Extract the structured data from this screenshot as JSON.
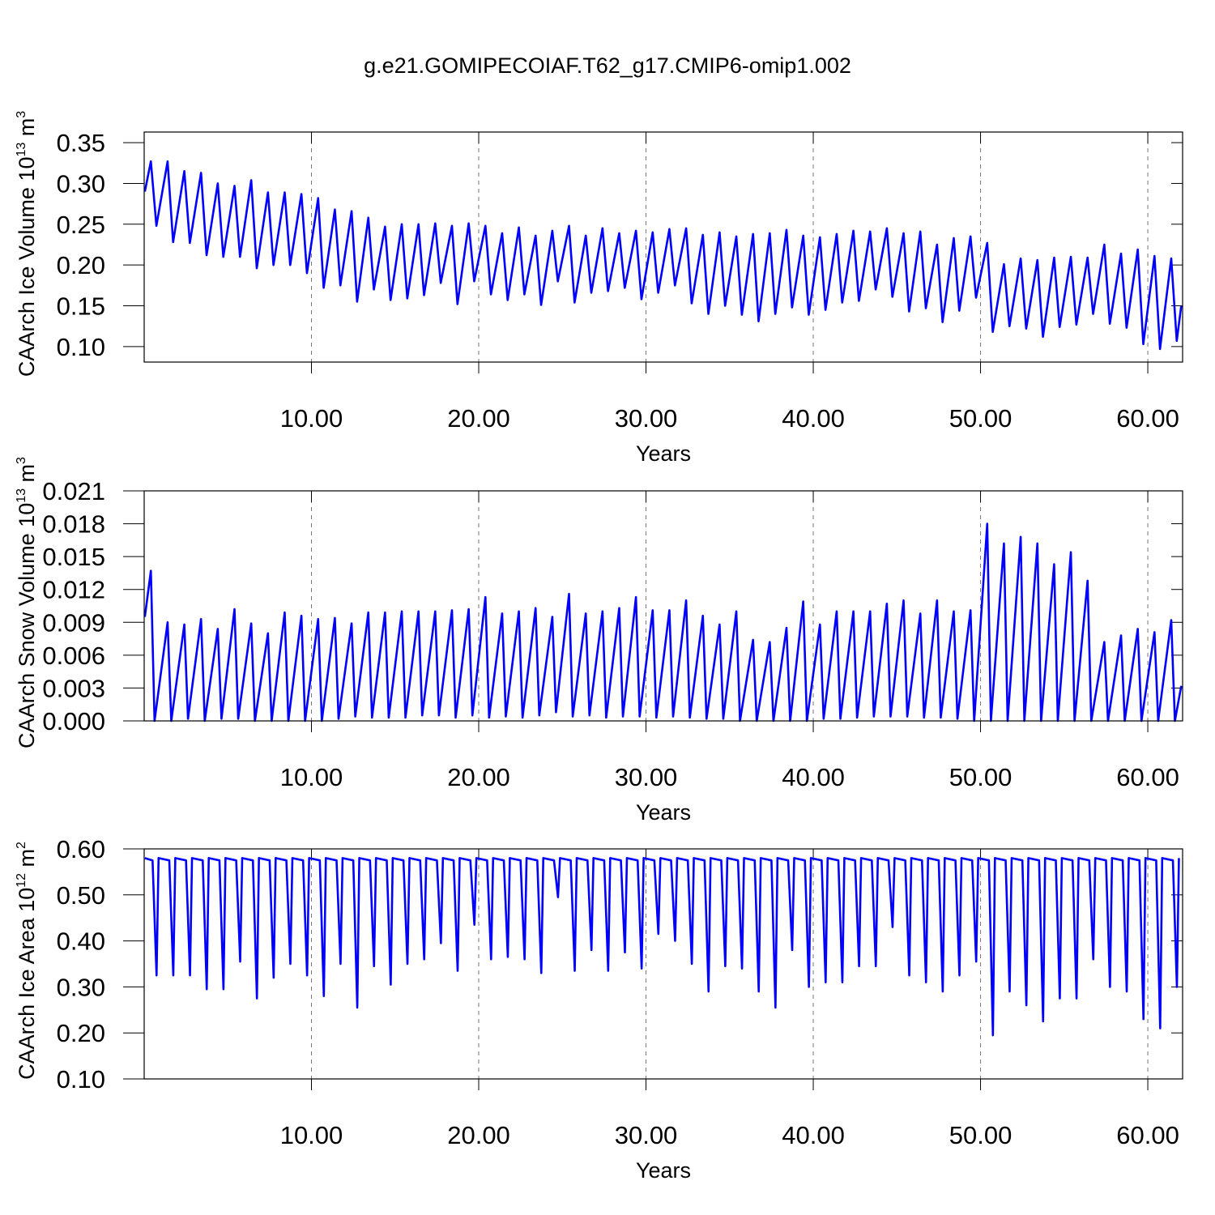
{
  "title": "g.e21.GOMIPECOIAF.T62_g17.CMIP6-omip1.002",
  "chart_data": [
    {
      "type": "line",
      "xlabel": "Years",
      "ylabel": {
        "text": "CAArch Ice Volume 10",
        "exponent": "13",
        "unit": " m",
        "unit_exponent": "3"
      },
      "color": "#0000ff",
      "grid": true,
      "xlim": [
        0,
        62.08
      ],
      "xticks": [
        {
          "value": 10,
          "label": "10.00"
        },
        {
          "value": 20,
          "label": "20.00"
        },
        {
          "value": 30,
          "label": "30.00"
        },
        {
          "value": 40,
          "label": "40.00"
        },
        {
          "value": 50,
          "label": "50.00"
        },
        {
          "value": 60,
          "label": "60.00"
        }
      ],
      "ylim": [
        0.081,
        0.363
      ],
      "yticks": [
        {
          "value": 0.1,
          "label": "0.10"
        },
        0.15,
        {
          "value": 0.2,
          "label": "0.20"
        },
        0.25,
        {
          "value": 0.3,
          "label": "0.30"
        },
        0.35
      ],
      "x": [
        0.04,
        0.4,
        0.73,
        1.4,
        1.73,
        2.4,
        2.73,
        3.4,
        3.73,
        4.4,
        4.73,
        5.4,
        5.73,
        6.4,
        6.73,
        7.4,
        7.73,
        8.4,
        8.73,
        9.4,
        9.73,
        10.4,
        10.73,
        11.4,
        11.73,
        12.4,
        12.73,
        13.4,
        13.73,
        14.4,
        14.73,
        15.4,
        15.73,
        16.4,
        16.73,
        17.4,
        17.73,
        18.4,
        18.73,
        19.4,
        19.73,
        20.4,
        20.73,
        21.4,
        21.73,
        22.4,
        22.73,
        23.4,
        23.73,
        24.4,
        24.73,
        25.4,
        25.73,
        26.4,
        26.73,
        27.4,
        27.73,
        28.4,
        28.73,
        29.4,
        29.73,
        30.4,
        30.73,
        31.4,
        31.73,
        32.4,
        32.73,
        33.4,
        33.73,
        34.4,
        34.73,
        35.4,
        35.73,
        36.4,
        36.73,
        37.4,
        37.73,
        38.4,
        38.73,
        39.4,
        39.73,
        40.4,
        40.73,
        41.4,
        41.73,
        42.4,
        42.73,
        43.4,
        43.73,
        44.4,
        44.73,
        45.4,
        45.73,
        46.4,
        46.73,
        47.4,
        47.73,
        48.4,
        48.73,
        49.4,
        49.73,
        50.4,
        50.73,
        51.4,
        51.73,
        52.4,
        52.73,
        53.4,
        53.73,
        54.4,
        54.73,
        55.4,
        55.73,
        56.4,
        56.73,
        57.4,
        57.73,
        58.4,
        58.73,
        59.4,
        59.73,
        60.4,
        60.73,
        61.4,
        61.73,
        62
      ],
      "values": [
        0.29,
        0.327,
        0.248,
        0.327,
        0.228,
        0.315,
        0.227,
        0.313,
        0.212,
        0.3,
        0.21,
        0.297,
        0.21,
        0.304,
        0.196,
        0.289,
        0.2,
        0.289,
        0.2,
        0.287,
        0.19,
        0.282,
        0.172,
        0.268,
        0.175,
        0.266,
        0.155,
        0.258,
        0.17,
        0.247,
        0.157,
        0.25,
        0.159,
        0.25,
        0.163,
        0.251,
        0.178,
        0.248,
        0.152,
        0.251,
        0.18,
        0.248,
        0.164,
        0.239,
        0.157,
        0.246,
        0.164,
        0.236,
        0.151,
        0.242,
        0.18,
        0.248,
        0.154,
        0.236,
        0.166,
        0.245,
        0.168,
        0.239,
        0.172,
        0.242,
        0.158,
        0.24,
        0.166,
        0.244,
        0.175,
        0.245,
        0.153,
        0.237,
        0.14,
        0.24,
        0.15,
        0.235,
        0.139,
        0.238,
        0.131,
        0.239,
        0.14,
        0.243,
        0.148,
        0.236,
        0.139,
        0.234,
        0.145,
        0.238,
        0.154,
        0.242,
        0.156,
        0.241,
        0.17,
        0.245,
        0.161,
        0.239,
        0.143,
        0.241,
        0.147,
        0.225,
        0.13,
        0.233,
        0.144,
        0.235,
        0.16,
        0.227,
        0.118,
        0.201,
        0.125,
        0.208,
        0.122,
        0.206,
        0.112,
        0.209,
        0.124,
        0.21,
        0.127,
        0.209,
        0.14,
        0.225,
        0.128,
        0.214,
        0.123,
        0.219,
        0.103,
        0.211,
        0.097,
        0.208,
        0.107,
        0.15
      ]
    },
    {
      "type": "line",
      "xlabel": "Years",
      "ylabel": {
        "text": "CAArch Snow Volume 10",
        "exponent": "13",
        "unit": " m",
        "unit_exponent": "3"
      },
      "color": "#0000ff",
      "grid": true,
      "xlim": [
        0,
        62.08
      ],
      "xticks": [
        {
          "value": 10,
          "label": "10.00"
        },
        {
          "value": 20,
          "label": "20.00"
        },
        {
          "value": 30,
          "label": "30.00"
        },
        {
          "value": 40,
          "label": "40.00"
        },
        {
          "value": 50,
          "label": "50.00"
        },
        {
          "value": 60,
          "label": "60.00"
        }
      ],
      "ylim": [
        0,
        0.021
      ],
      "yticks": [
        {
          "value": 0,
          "label": "0.000"
        },
        0.003,
        0.006,
        0.009,
        0.012,
        0.015,
        0.018,
        0.021
      ],
      "x": [
        0.04,
        0.4,
        0.62,
        1.4,
        1.62,
        2.4,
        2.62,
        3.4,
        3.62,
        4.4,
        4.62,
        5.4,
        5.62,
        6.4,
        6.62,
        7.4,
        7.62,
        8.4,
        8.62,
        9.4,
        9.62,
        10.4,
        10.62,
        11.4,
        11.62,
        12.4,
        12.62,
        13.4,
        13.62,
        14.4,
        14.62,
        15.4,
        15.62,
        16.4,
        16.62,
        17.4,
        17.62,
        18.4,
        18.62,
        19.4,
        19.62,
        20.4,
        20.62,
        21.4,
        21.62,
        22.4,
        22.62,
        23.4,
        23.62,
        24.4,
        24.62,
        25.4,
        25.62,
        26.4,
        26.62,
        27.4,
        27.62,
        28.4,
        28.62,
        29.4,
        29.62,
        30.4,
        30.62,
        31.4,
        31.62,
        32.4,
        32.62,
        33.4,
        33.62,
        34.4,
        34.62,
        35.4,
        35.62,
        36.4,
        36.62,
        37.4,
        37.62,
        38.4,
        38.62,
        39.4,
        39.62,
        40.4,
        40.62,
        41.4,
        41.62,
        42.4,
        42.62,
        43.4,
        43.62,
        44.4,
        44.62,
        45.4,
        45.62,
        46.4,
        46.62,
        47.4,
        47.62,
        48.4,
        48.62,
        49.4,
        49.62,
        50.4,
        50.62,
        51.4,
        51.62,
        52.4,
        52.62,
        53.4,
        53.62,
        54.4,
        54.62,
        55.4,
        55.62,
        56.4,
        56.62,
        57.4,
        57.62,
        58.4,
        58.62,
        59.4,
        59.62,
        60.4,
        60.62,
        61.4,
        61.62,
        62
      ],
      "values": [
        0.0095,
        0.0137,
        0,
        0.009,
        0,
        0.0088,
        0.0002,
        0.0093,
        0,
        0.0084,
        0.0002,
        0.0102,
        0.0002,
        0.0089,
        0,
        0.008,
        0,
        0.0099,
        0,
        0.0096,
        0,
        0.0093,
        0,
        0.0094,
        0.0002,
        0.0089,
        0.0004,
        0.0099,
        0.0003,
        0.0099,
        0.0003,
        0.01,
        0.0003,
        0.01,
        0.0005,
        0.01,
        0.0005,
        0.0101,
        0.0003,
        0.0102,
        0.0005,
        0.0113,
        0.0003,
        0.0098,
        0.0004,
        0.01,
        0.0003,
        0.0103,
        0.0005,
        0.0095,
        0.0008,
        0.0116,
        0.0004,
        0.0098,
        0.0005,
        0.01,
        0.0003,
        0.0103,
        0.0004,
        0.0113,
        0.0004,
        0.0101,
        0.0003,
        0.0101,
        0.0004,
        0.011,
        0.0003,
        0.0096,
        0.0002,
        0.0088,
        0.0002,
        0.01,
        0,
        0.0074,
        0,
        0.0072,
        0,
        0.0085,
        0,
        0.0109,
        0,
        0.0088,
        0.0002,
        0.01,
        0.0002,
        0.01,
        0.0003,
        0.01,
        0.0004,
        0.0107,
        0.0004,
        0.011,
        0.0004,
        0.0098,
        0.0003,
        0.011,
        0.0003,
        0.01,
        0.0002,
        0.0101,
        0,
        0.018,
        0,
        0.0162,
        0,
        0.0168,
        0,
        0.0162,
        0,
        0.0143,
        0,
        0.0154,
        0,
        0.0128,
        0,
        0.0072,
        0,
        0.0078,
        0,
        0.0084,
        0,
        0.0081,
        0,
        0.0092,
        0,
        0.0032
      ]
    },
    {
      "type": "line",
      "xlabel": "Years",
      "ylabel": {
        "text": "CAArch Ice Area 10",
        "exponent": "12",
        "unit": " m",
        "unit_exponent": "2"
      },
      "color": "#0000ff",
      "grid": true,
      "xlim": [
        0,
        62.08
      ],
      "xticks": [
        {
          "value": 10,
          "label": "10.00"
        },
        {
          "value": 20,
          "label": "20.00"
        },
        {
          "value": 30,
          "label": "30.00"
        },
        {
          "value": 40,
          "label": "40.00"
        },
        {
          "value": 50,
          "label": "50.00"
        },
        {
          "value": 60,
          "label": "60.00"
        }
      ],
      "ylim": [
        0.1,
        0.6
      ],
      "yticks": [
        {
          "value": 0.1,
          "label": "0.10"
        },
        {
          "value": 0.2,
          "label": "0.20"
        },
        {
          "value": 0.3,
          "label": "0.30"
        },
        {
          "value": 0.4,
          "label": "0.40"
        },
        {
          "value": 0.5,
          "label": "0.50"
        },
        {
          "value": 0.6,
          "label": "0.60"
        }
      ],
      "x": [
        0.04,
        0.5,
        0.74,
        0.86,
        1.5,
        1.74,
        1.86,
        2.5,
        2.74,
        2.86,
        3.5,
        3.74,
        3.86,
        4.5,
        4.74,
        4.86,
        5.5,
        5.74,
        5.86,
        6.5,
        6.74,
        6.86,
        7.5,
        7.74,
        7.86,
        8.5,
        8.74,
        8.86,
        9.5,
        9.74,
        9.86,
        10.5,
        10.74,
        10.86,
        11.5,
        11.74,
        11.86,
        12.5,
        12.74,
        12.86,
        13.5,
        13.74,
        13.86,
        14.5,
        14.74,
        14.86,
        15.5,
        15.74,
        15.86,
        16.5,
        16.74,
        16.86,
        17.5,
        17.74,
        17.86,
        18.5,
        18.74,
        18.86,
        19.5,
        19.74,
        19.86,
        20.5,
        20.74,
        20.86,
        21.5,
        21.74,
        21.86,
        22.5,
        22.74,
        22.86,
        23.5,
        23.74,
        23.86,
        24.5,
        24.74,
        24.86,
        25.5,
        25.74,
        25.86,
        26.5,
        26.74,
        26.86,
        27.5,
        27.74,
        27.86,
        28.5,
        28.74,
        28.86,
        29.5,
        29.74,
        29.86,
        30.5,
        30.74,
        30.86,
        31.5,
        31.74,
        31.86,
        32.5,
        32.74,
        32.86,
        33.5,
        33.74,
        33.86,
        34.5,
        34.74,
        34.86,
        35.5,
        35.74,
        35.86,
        36.5,
        36.74,
        36.86,
        37.5,
        37.74,
        37.86,
        38.5,
        38.74,
        38.86,
        39.5,
        39.74,
        39.86,
        40.5,
        40.74,
        40.86,
        41.5,
        41.74,
        41.86,
        42.5,
        42.74,
        42.86,
        43.5,
        43.74,
        43.86,
        44.5,
        44.74,
        44.86,
        45.5,
        45.74,
        45.86,
        46.5,
        46.74,
        46.86,
        47.5,
        47.74,
        47.86,
        48.5,
        48.74,
        48.86,
        49.5,
        49.74,
        49.86,
        50.5,
        50.74,
        50.86,
        51.5,
        51.74,
        51.86,
        52.5,
        52.74,
        52.86,
        53.5,
        53.74,
        53.86,
        54.5,
        54.74,
        54.86,
        55.5,
        55.74,
        55.86,
        56.5,
        56.74,
        56.86,
        57.5,
        57.74,
        57.86,
        58.5,
        58.74,
        58.86,
        59.5,
        59.74,
        59.86,
        60.5,
        60.74,
        60.86,
        61.5,
        61.74,
        61.86
      ],
      "values": [
        0.58,
        0.575,
        0.325,
        0.58,
        0.575,
        0.325,
        0.58,
        0.575,
        0.325,
        0.58,
        0.575,
        0.295,
        0.58,
        0.575,
        0.295,
        0.58,
        0.575,
        0.355,
        0.58,
        0.575,
        0.275,
        0.58,
        0.575,
        0.32,
        0.58,
        0.575,
        0.35,
        0.58,
        0.575,
        0.325,
        0.58,
        0.575,
        0.28,
        0.58,
        0.575,
        0.35,
        0.58,
        0.575,
        0.255,
        0.58,
        0.575,
        0.345,
        0.58,
        0.575,
        0.305,
        0.58,
        0.575,
        0.35,
        0.58,
        0.575,
        0.36,
        0.58,
        0.575,
        0.395,
        0.58,
        0.575,
        0.335,
        0.58,
        0.575,
        0.435,
        0.58,
        0.575,
        0.36,
        0.58,
        0.575,
        0.365,
        0.58,
        0.575,
        0.36,
        0.58,
        0.575,
        0.33,
        0.58,
        0.575,
        0.495,
        0.58,
        0.575,
        0.335,
        0.58,
        0.575,
        0.38,
        0.58,
        0.575,
        0.335,
        0.58,
        0.575,
        0.375,
        0.58,
        0.575,
        0.34,
        0.58,
        0.575,
        0.415,
        0.58,
        0.575,
        0.4,
        0.58,
        0.575,
        0.35,
        0.58,
        0.575,
        0.29,
        0.58,
        0.575,
        0.345,
        0.58,
        0.575,
        0.34,
        0.58,
        0.575,
        0.29,
        0.58,
        0.575,
        0.255,
        0.58,
        0.575,
        0.38,
        0.58,
        0.575,
        0.3,
        0.58,
        0.575,
        0.31,
        0.58,
        0.575,
        0.31,
        0.58,
        0.575,
        0.345,
        0.58,
        0.575,
        0.345,
        0.58,
        0.575,
        0.43,
        0.58,
        0.575,
        0.325,
        0.58,
        0.575,
        0.31,
        0.58,
        0.575,
        0.29,
        0.58,
        0.575,
        0.325,
        0.58,
        0.575,
        0.355,
        0.58,
        0.575,
        0.195,
        0.58,
        0.575,
        0.29,
        0.58,
        0.575,
        0.26,
        0.58,
        0.575,
        0.225,
        0.58,
        0.575,
        0.275,
        0.58,
        0.575,
        0.275,
        0.58,
        0.575,
        0.36,
        0.58,
        0.575,
        0.3,
        0.58,
        0.575,
        0.29,
        0.58,
        0.575,
        0.23,
        0.58,
        0.575,
        0.21,
        0.58,
        0.575,
        0.3,
        0.58
      ]
    }
  ]
}
